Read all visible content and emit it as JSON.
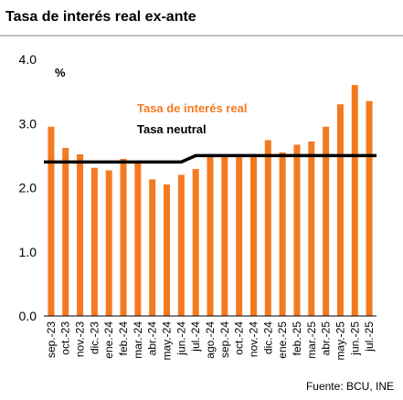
{
  "title": "Tasa de interés real ex-ante",
  "source": "Fuente: BCU, INE",
  "colors": {
    "bar": "#F47A20",
    "neutral_line": "#000000",
    "axis": "#000000",
    "legend_real": "#F47A20",
    "legend_neutral": "#000000"
  },
  "chart_data": {
    "type": "bar",
    "unit_label": "%",
    "ylim": [
      0,
      4
    ],
    "yticks": [
      "0.0",
      "1.0",
      "2.0",
      "3.0",
      "4.0"
    ],
    "grid": false,
    "legend_position": "top-right",
    "categories": [
      "sep.-23",
      "oct.-23",
      "nov.-23",
      "dic.-23",
      "ene.-24",
      "feb.-24",
      "mar.-24",
      "abr.-24",
      "may.-24",
      "jun.-24",
      "jul.-24",
      "ago.-24",
      "sep.-24",
      "oct.-24",
      "nov.-24",
      "dic.-24",
      "ene.-25",
      "feb.-25",
      "mar.-25",
      "abr.-25",
      "may.-25",
      "jun.-25",
      "jul.-25"
    ],
    "series": [
      {
        "name": "Tasa de interés real",
        "type": "bar",
        "values": [
          2.95,
          2.62,
          2.52,
          2.31,
          2.27,
          2.45,
          2.4,
          2.13,
          2.05,
          2.2,
          2.29,
          2.5,
          2.5,
          2.5,
          2.5,
          2.74,
          2.55,
          2.67,
          2.72,
          2.95,
          3.3,
          3.6,
          3.35
        ]
      },
      {
        "name": "Tasa neutral",
        "type": "line",
        "values": [
          2.4,
          2.4,
          2.4,
          2.4,
          2.4,
          2.4,
          2.4,
          2.4,
          2.4,
          2.4,
          2.5,
          2.5,
          2.5,
          2.5,
          2.5,
          2.5,
          2.5,
          2.5,
          2.5,
          2.5,
          2.5,
          2.5,
          2.5
        ]
      }
    ]
  }
}
